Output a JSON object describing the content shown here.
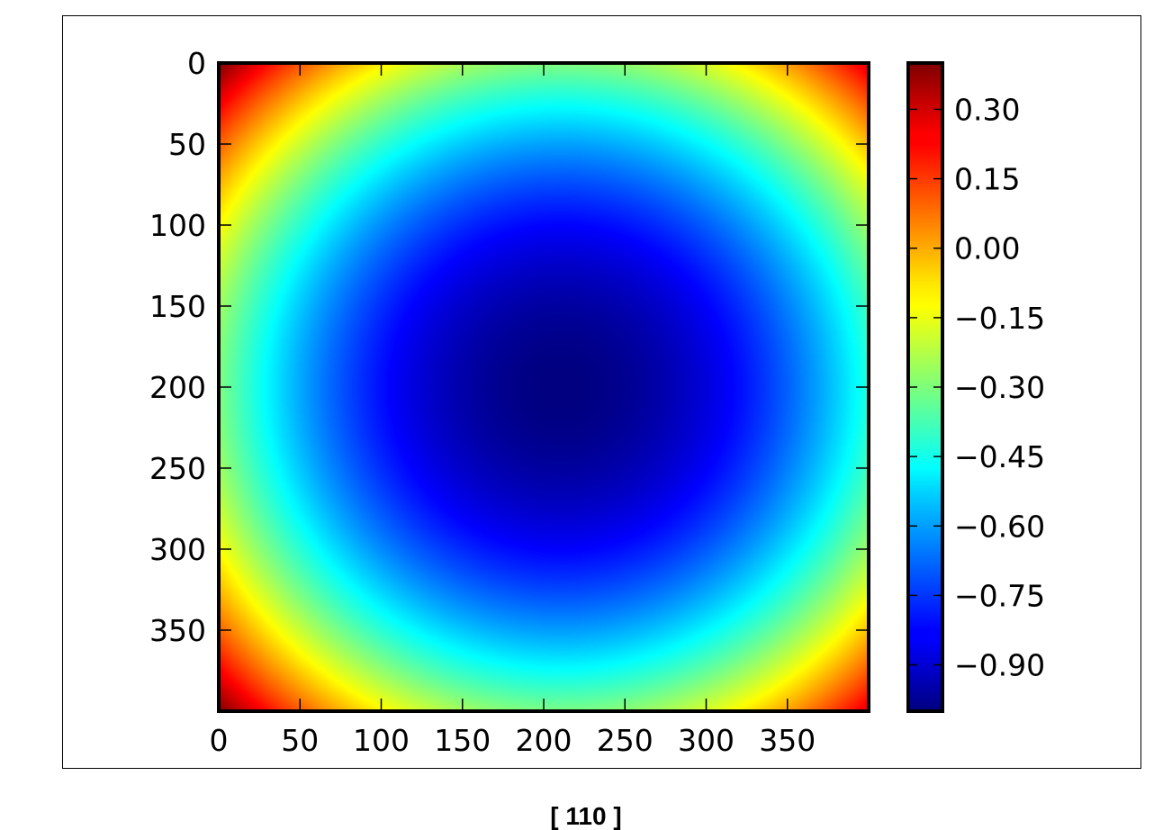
{
  "page": {
    "number": "[ 110 ]"
  },
  "chart_data": {
    "type": "heatmap",
    "title": "",
    "xlabel": "",
    "ylabel": "",
    "grid": false,
    "image_shape": [
      400,
      400
    ],
    "colormap": "jet",
    "x_range": [
      0,
      400
    ],
    "y_range": [
      0,
      400
    ],
    "y_axis_inverted": true,
    "x_ticks": [
      0,
      50,
      100,
      150,
      200,
      250,
      300,
      350
    ],
    "x_tick_labels": [
      "0",
      "50",
      "100",
      "150",
      "200",
      "250",
      "300",
      "350"
    ],
    "y_ticks": [
      0,
      50,
      100,
      150,
      200,
      250,
      300,
      350
    ],
    "y_tick_labels": [
      "0",
      "50",
      "100",
      "150",
      "200",
      "250",
      "300",
      "350"
    ],
    "colorbar": {
      "range": [
        -1.0,
        0.4
      ],
      "ticks": [
        0.3,
        0.15,
        0.0,
        -0.15,
        -0.3,
        -0.45,
        -0.6,
        -0.75,
        -0.9
      ],
      "tick_labels": [
        "0.30",
        "0.15",
        "0.00",
        "−0.15",
        "−0.30",
        "−0.45",
        "−0.60",
        "−0.75",
        "−0.90"
      ]
    },
    "field": {
      "description_of_values": "minimum near center, maximum at corners",
      "center": [
        210,
        200
      ],
      "min_value": -1.0,
      "max_value": 0.4,
      "corner_value": 0.4
    }
  }
}
